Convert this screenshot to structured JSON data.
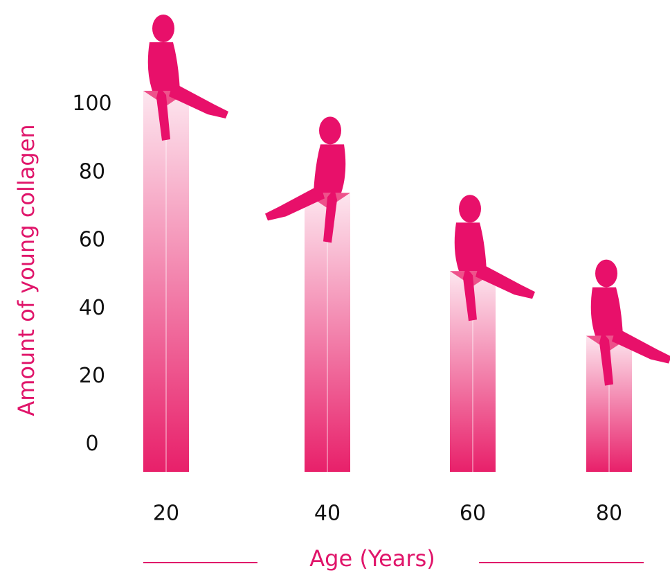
{
  "chart_data": {
    "type": "bar",
    "x_label": "Age (Years)",
    "y_label": "Amount of young collagen",
    "categories": [
      "20",
      "40",
      "60",
      "80"
    ],
    "values": [
      104,
      74,
      51,
      32
    ],
    "color": "#e8206a",
    "ylim": [
      -8,
      126
    ],
    "yticks": [
      0,
      20,
      40,
      60,
      80,
      100
    ]
  }
}
